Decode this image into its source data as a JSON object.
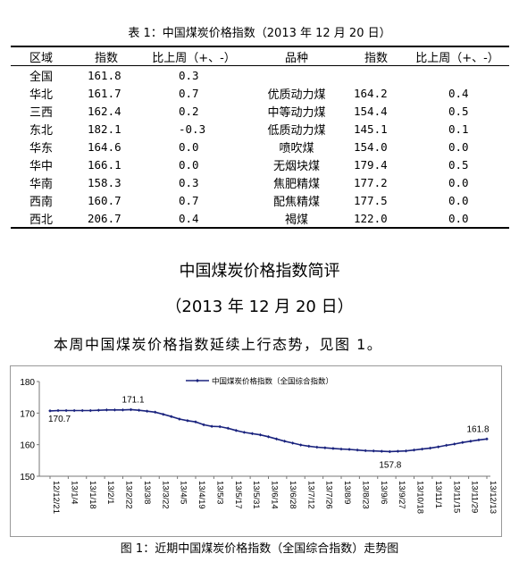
{
  "table_caption": "表 1：中国煤炭价格指数（2013 年 12 月 20 日）",
  "table": {
    "headers": [
      "区域",
      "指数",
      "比上周（+、-）",
      "品种",
      "指数",
      "比上周（+、-）"
    ],
    "rows": [
      [
        "全国",
        "161.8",
        "0.3",
        "",
        "",
        ""
      ],
      [
        "华北",
        "161.7",
        "0.7",
        "优质动力煤",
        "164.2",
        "0.4"
      ],
      [
        "三西",
        "162.4",
        "0.2",
        "中等动力煤",
        "154.4",
        "0.5"
      ],
      [
        "东北",
        "182.1",
        "-0.3",
        "低质动力煤",
        "145.1",
        "0.1"
      ],
      [
        "华东",
        "164.6",
        "0.0",
        "喷吹煤",
        "154.0",
        "0.0"
      ],
      [
        "华中",
        "166.1",
        "0.0",
        "无烟块煤",
        "179.4",
        "0.5"
      ],
      [
        "华南",
        "158.3",
        "0.3",
        "焦肥精煤",
        "177.2",
        "0.0"
      ],
      [
        "西南",
        "160.7",
        "0.7",
        "配焦精煤",
        "177.5",
        "0.0"
      ],
      [
        "西北",
        "206.7",
        "0.4",
        "褐煤",
        "122.0",
        "0.0"
      ]
    ]
  },
  "report_title": "中国煤炭价格指数简评",
  "report_date": "（2013 年 12 月 20 日）",
  "paragraph": "本周中国煤炭价格指数延续上行态势，见图 1。",
  "figure_caption": "图 1：近期中国煤炭价格指数（全国综合指数）走势图",
  "chart_data": {
    "type": "line",
    "legend": "中国煤炭价格指数（全国综合指数）",
    "legend_position": "top",
    "ylim": [
      150,
      180
    ],
    "yticks": [
      "150",
      "160",
      "170",
      "180"
    ],
    "grid": false,
    "color": "#1a237e",
    "x_tick_labels": [
      "12/12/21",
      "13/1/4",
      "13/1/18",
      "13/2/1",
      "13/2/22",
      "13/3/8",
      "13/3/22",
      "13/4/5",
      "13/4/19",
      "13/5/3",
      "13/5/17",
      "13/5/31",
      "13/6/14",
      "13/6/28",
      "13/7/12",
      "13/7/26",
      "13/8/9",
      "13/8/23",
      "13/9/6",
      "13/9/27",
      "13/10/18",
      "13/11/1",
      "13/11/15",
      "13/11/29",
      "13/12/13"
    ],
    "values": [
      170.7,
      170.8,
      170.8,
      170.8,
      170.8,
      170.8,
      170.9,
      171.0,
      171.0,
      171.0,
      171.1,
      170.9,
      170.6,
      170.3,
      169.6,
      168.9,
      168.1,
      167.6,
      167.2,
      166.3,
      165.8,
      165.7,
      165.2,
      164.5,
      163.9,
      163.5,
      163.1,
      162.5,
      161.8,
      161.1,
      160.5,
      159.9,
      159.5,
      159.2,
      159.0,
      158.8,
      158.6,
      158.5,
      158.3,
      158.1,
      158.0,
      157.9,
      157.8,
      157.9,
      158.0,
      158.3,
      158.6,
      158.9,
      159.3,
      159.8,
      160.2,
      160.7,
      161.1,
      161.5,
      161.8
    ],
    "annotations": [
      {
        "index": 0,
        "label": "170.7"
      },
      {
        "index": 10,
        "label": "171.1"
      },
      {
        "index": 42,
        "label": "157.8"
      },
      {
        "index": 54,
        "label": "161.8"
      }
    ]
  }
}
